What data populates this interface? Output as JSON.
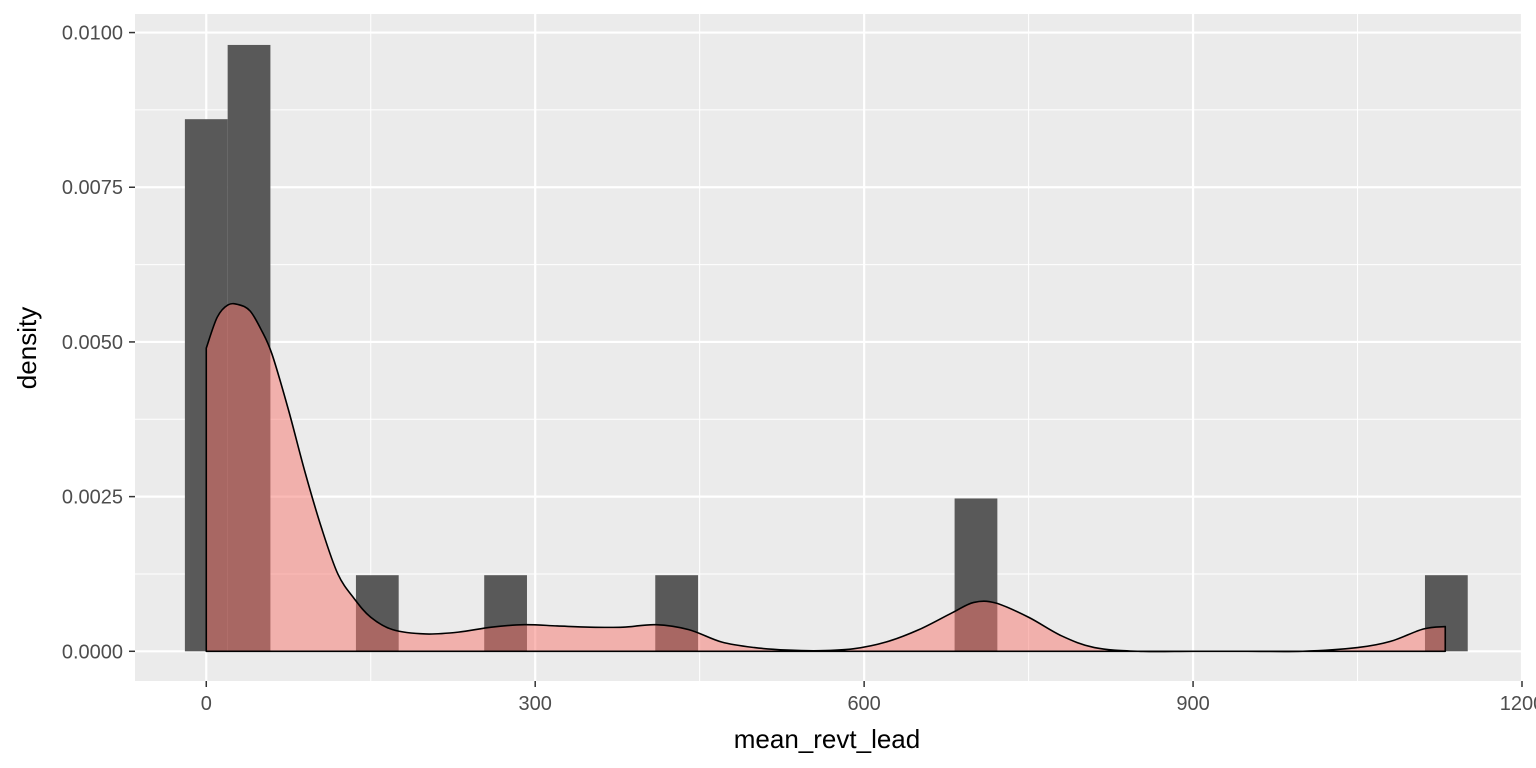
{
  "chart_data": {
    "type": "histogram+density",
    "title": "",
    "xlabel": "mean_revt_lead",
    "ylabel": "density",
    "xlim": [
      -65,
      1200
    ],
    "ylim": [
      -0.00048,
      0.0103
    ],
    "x_ticks": [
      0,
      300,
      600,
      900,
      1200
    ],
    "x_tick_labels": [
      "0",
      "300",
      "600",
      "900",
      "1200"
    ],
    "y_ticks": [
      0.0,
      0.0025,
      0.005,
      0.0075,
      0.01
    ],
    "y_tick_labels": [
      "0.0000",
      "0.0025",
      "0.0050",
      "0.0075",
      "0.0100"
    ],
    "grid": true,
    "histogram": {
      "fill": "#595959",
      "bins": [
        {
          "x0": -19.5,
          "x1": 19.5,
          "density": 0.0086
        },
        {
          "x0": 19.5,
          "x1": 58.5,
          "density": 0.0098
        },
        {
          "x0": 136.5,
          "x1": 175.5,
          "density": 0.00123
        },
        {
          "x0": 253.5,
          "x1": 292.5,
          "density": 0.00123
        },
        {
          "x0": 409.5,
          "x1": 448.5,
          "density": 0.00123
        },
        {
          "x0": 682.5,
          "x1": 721.5,
          "density": 0.00247
        },
        {
          "x0": 1111.5,
          "x1": 1150.5,
          "density": 0.00123
        }
      ]
    },
    "density_curve": {
      "fill": "#f8766d",
      "fill_opacity": 0.5,
      "stroke": "#000000",
      "x": [
        0,
        10,
        20,
        30,
        40,
        50,
        60,
        75,
        90,
        105,
        120,
        135,
        150,
        170,
        200,
        230,
        260,
        290,
        320,
        350,
        380,
        410,
        440,
        470,
        500,
        530,
        560,
        590,
        620,
        650,
        680,
        700,
        720,
        750,
        780,
        810,
        850,
        900,
        950,
        1000,
        1050,
        1080,
        1110,
        1130
      ],
      "y": [
        0.0049,
        0.0054,
        0.0056,
        0.0056,
        0.0055,
        0.0052,
        0.0048,
        0.0039,
        0.0029,
        0.002,
        0.00125,
        0.00085,
        0.00055,
        0.00035,
        0.00028,
        0.00031,
        0.00039,
        0.00043,
        0.00041,
        0.00039,
        0.00039,
        0.00043,
        0.00035,
        0.00015,
        6e-05,
        2e-05,
        1e-05,
        4e-05,
        0.00015,
        0.00035,
        0.00062,
        0.00079,
        0.00078,
        0.00055,
        0.00025,
        6e-05,
        0.0,
        0.0,
        0.0,
        0.0,
        6e-05,
        0.00016,
        0.00036,
        0.0004
      ]
    }
  }
}
